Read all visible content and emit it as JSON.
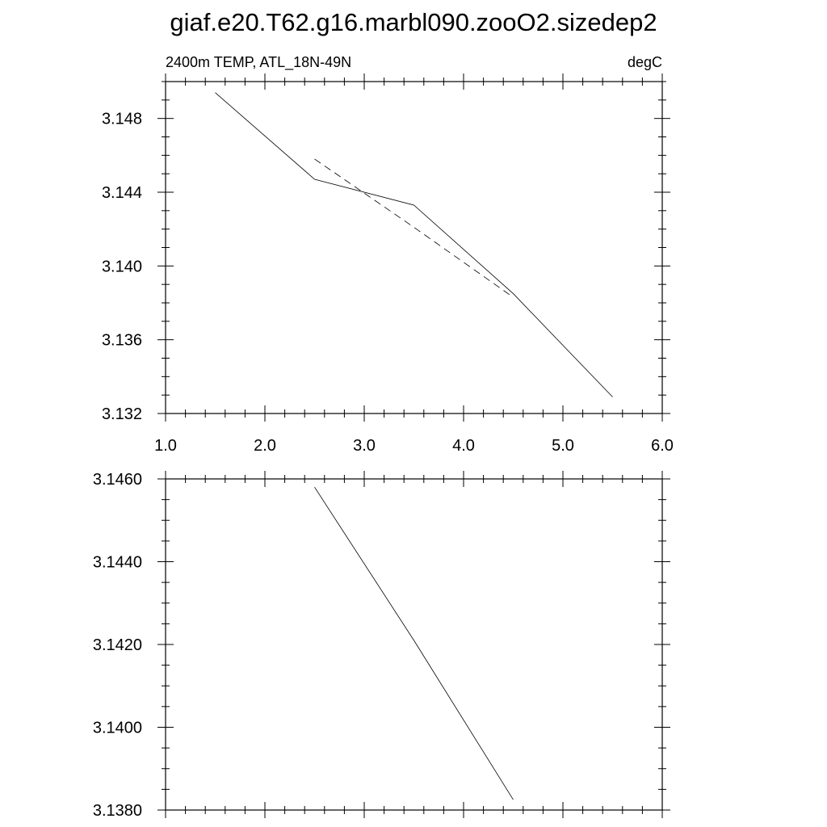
{
  "figure_title": "giaf.e20.T62.g16.marbl090.zooO2.sizedep2",
  "chart_data": [
    {
      "type": "line",
      "title_left": "2400m TEMP, ATL_18N-49N",
      "title_right": "degC",
      "xlim": [
        1.0,
        6.0
      ],
      "ylim": [
        3.132,
        3.15
      ],
      "x_ticks": [
        1.0,
        2.0,
        3.0,
        4.0,
        5.0,
        6.0
      ],
      "x_tick_labels": [
        "1.0",
        "2.0",
        "3.0",
        "4.0",
        "5.0",
        "6.0"
      ],
      "y_ticks": [
        3.132,
        3.136,
        3.14,
        3.144,
        3.148
      ],
      "y_tick_labels": [
        "3.132",
        "3.136",
        "3.140",
        "3.144",
        "3.148"
      ],
      "x_minor_step": 0.2,
      "y_minor_step": 0.001,
      "series": [
        {
          "style": "solid",
          "x": [
            1.5,
            2.5,
            3.5,
            4.5,
            5.5
          ],
          "y": [
            3.1494,
            3.1447,
            3.1433,
            3.1385,
            3.1329
          ]
        },
        {
          "style": "dashed",
          "x": [
            2.5,
            3.5,
            4.5
          ],
          "y": [
            3.1458,
            3.1421,
            3.1383
          ]
        }
      ]
    },
    {
      "type": "line",
      "xlim": [
        1.0,
        6.0
      ],
      "ylim": [
        3.138,
        3.146
      ],
      "x_ticks": [
        1.0,
        2.0,
        3.0,
        4.0,
        5.0,
        6.0
      ],
      "x_tick_labels": [],
      "y_ticks": [
        3.138,
        3.14,
        3.142,
        3.144,
        3.146
      ],
      "y_tick_labels": [
        "3.1380",
        "3.1400",
        "3.1420",
        "3.1440",
        "3.1460"
      ],
      "x_minor_step": 0.2,
      "y_minor_step": 0.0005,
      "series": [
        {
          "style": "solid",
          "x": [
            2.5,
            3.5,
            4.5
          ],
          "y": [
            3.1458,
            3.1421,
            3.13825
          ]
        }
      ]
    }
  ]
}
